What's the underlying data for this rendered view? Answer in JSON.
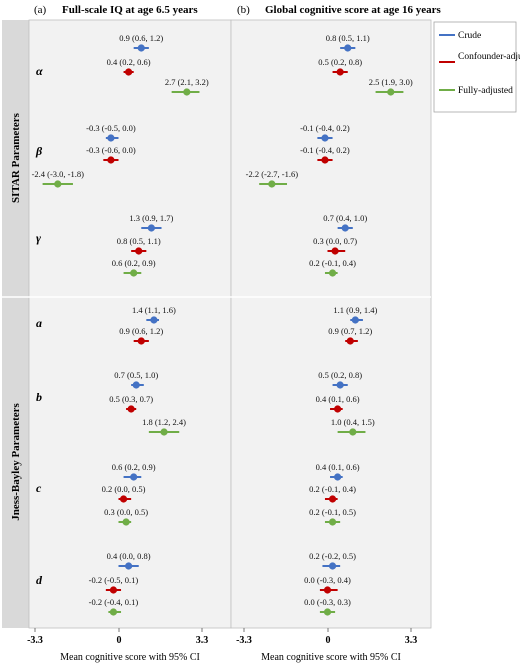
{
  "figure": {
    "panel_letters": [
      "(a)",
      "(b)"
    ],
    "panel_titles": [
      "Full-scale IQ at age 6.5 years",
      "Global cognitive score at age 16 years"
    ],
    "group_labels": [
      "SITAR Parameters",
      "Jness-Bayley Parameters"
    ],
    "row_labels": [
      "α",
      "β",
      "γ",
      "a",
      "b",
      "c",
      "d"
    ],
    "x_axis_label": "Mean cognitive score with 95% CI",
    "x_ticks": [
      "-3.3",
      "0",
      "3.3"
    ],
    "legend": [
      {
        "name": "Crude",
        "color": "#4472c4"
      },
      {
        "name": "Confounder-adjusted",
        "color": "#c00000"
      },
      {
        "name": "Fully-adjusted",
        "color": "#70ad47"
      }
    ],
    "colors": {
      "crude": "#4472c4",
      "confounder": "#c00000",
      "fully": "#70ad47",
      "panel_bg": "#f2f2f2",
      "group_bg": "#d9d9d9"
    }
  },
  "chart_data": [
    {
      "type": "forest",
      "title": "Full-scale IQ at age 6.5 years",
      "xlabel": "Mean cognitive score with 95% CI",
      "xlim": [
        -3.3,
        3.3
      ],
      "categories": [
        "α",
        "β",
        "γ",
        "a",
        "b",
        "c",
        "d"
      ],
      "series": [
        {
          "name": "Crude",
          "points": [
            {
              "est": 0.9,
              "lo": 0.6,
              "hi": 1.2,
              "label": "0.9 (0.6, 1.2)"
            },
            {
              "est": -0.3,
              "lo": -0.5,
              "hi": 0.0,
              "label": "-0.3 (-0.5, 0.0)"
            },
            {
              "est": 1.3,
              "lo": 0.9,
              "hi": 1.7,
              "label": "1.3 (0.9, 1.7)"
            },
            {
              "est": 1.4,
              "lo": 1.1,
              "hi": 1.6,
              "label": "1.4 (1.1, 1.6)"
            },
            {
              "est": 0.7,
              "lo": 0.5,
              "hi": 1.0,
              "label": "0.7 (0.5, 1.0)"
            },
            {
              "est": 0.6,
              "lo": 0.2,
              "hi": 0.9,
              "label": "0.6 (0.2, 0.9)"
            },
            {
              "est": 0.4,
              "lo": 0.0,
              "hi": 0.8,
              "label": "0.4 (0.0, 0.8)"
            }
          ]
        },
        {
          "name": "Confounder-adjusted",
          "points": [
            {
              "est": 0.4,
              "lo": 0.2,
              "hi": 0.6,
              "label": "0.4 (0.2, 0.6)"
            },
            {
              "est": -0.3,
              "lo": -0.6,
              "hi": 0.0,
              "label": "-0.3 (-0.6, 0.0)"
            },
            {
              "est": 0.8,
              "lo": 0.5,
              "hi": 1.1,
              "label": "0.8 (0.5, 1.1)"
            },
            {
              "est": 0.9,
              "lo": 0.6,
              "hi": 1.2,
              "label": "0.9 (0.6, 1.2)"
            },
            {
              "est": 0.5,
              "lo": 0.3,
              "hi": 0.7,
              "label": "0.5 (0.3, 0.7)"
            },
            {
              "est": 0.2,
              "lo": 0.0,
              "hi": 0.5,
              "label": "0.2 (0.0, 0.5)"
            },
            {
              "est": -0.2,
              "lo": -0.5,
              "hi": 0.1,
              "label": "-0.2 (-0.5, 0.1)"
            }
          ]
        },
        {
          "name": "Fully-adjusted",
          "points": [
            {
              "est": 2.7,
              "lo": 2.1,
              "hi": 3.2,
              "label": "2.7 (2.1, 3.2)"
            },
            {
              "est": -2.4,
              "lo": -3.0,
              "hi": -1.8,
              "label": "-2.4 (-3.0, -1.8)"
            },
            {
              "est": 0.6,
              "lo": 0.2,
              "hi": 0.9,
              "label": "0.6 (0.2, 0.9)"
            },
            null,
            {
              "est": 1.8,
              "lo": 1.2,
              "hi": 2.4,
              "label": "1.8 (1.2, 2.4)"
            },
            {
              "est": 0.3,
              "lo": 0.0,
              "hi": 0.5,
              "label": "0.3 (0.0, 0.5)"
            },
            {
              "est": -0.2,
              "lo": -0.4,
              "hi": 0.1,
              "label": "-0.2 (-0.4, 0.1)"
            }
          ]
        }
      ]
    },
    {
      "type": "forest",
      "title": "Global cognitive score at age 16 years",
      "xlabel": "Mean cognitive score with 95% CI",
      "xlim": [
        -3.3,
        3.3
      ],
      "categories": [
        "α",
        "β",
        "γ",
        "a",
        "b",
        "c",
        "d"
      ],
      "series": [
        {
          "name": "Crude",
          "points": [
            {
              "est": 0.8,
              "lo": 0.5,
              "hi": 1.1,
              "label": "0.8 (0.5, 1.1)"
            },
            {
              "est": -0.1,
              "lo": -0.4,
              "hi": 0.2,
              "label": "-0.1 (-0.4, 0.2)"
            },
            {
              "est": 0.7,
              "lo": 0.4,
              "hi": 1.0,
              "label": "0.7 (0.4, 1.0)"
            },
            {
              "est": 1.1,
              "lo": 0.9,
              "hi": 1.4,
              "label": "1.1 (0.9, 1.4)"
            },
            {
              "est": 0.5,
              "lo": 0.2,
              "hi": 0.8,
              "label": "0.5 (0.2, 0.8)"
            },
            {
              "est": 0.4,
              "lo": 0.1,
              "hi": 0.6,
              "label": "0.4 (0.1, 0.6)"
            },
            {
              "est": 0.2,
              "lo": -0.2,
              "hi": 0.5,
              "label": "0.2 (-0.2, 0.5)"
            }
          ]
        },
        {
          "name": "Confounder-adjusted",
          "points": [
            {
              "est": 0.5,
              "lo": 0.2,
              "hi": 0.8,
              "label": "0.5 (0.2, 0.8)"
            },
            {
              "est": -0.1,
              "lo": -0.4,
              "hi": 0.2,
              "label": "-0.1 (-0.4, 0.2)"
            },
            {
              "est": 0.3,
              "lo": 0.0,
              "hi": 0.7,
              "label": "0.3 (0.0, 0.7)"
            },
            {
              "est": 0.9,
              "lo": 0.7,
              "hi": 1.2,
              "label": "0.9 (0.7, 1.2)"
            },
            {
              "est": 0.4,
              "lo": 0.1,
              "hi": 0.6,
              "label": "0.4 (0.1, 0.6)"
            },
            {
              "est": 0.2,
              "lo": -0.1,
              "hi": 0.4,
              "label": "0.2 (-0.1, 0.4)"
            },
            {
              "est": 0.0,
              "lo": -0.3,
              "hi": 0.4,
              "label": "0.0 (-0.3, 0.4)"
            }
          ]
        },
        {
          "name": "Fully-adjusted",
          "points": [
            {
              "est": 2.5,
              "lo": 1.9,
              "hi": 3.0,
              "label": "2.5 (1.9, 3.0)"
            },
            {
              "est": -2.2,
              "lo": -2.7,
              "hi": -1.6,
              "label": "-2.2 (-2.7, -1.6)"
            },
            {
              "est": 0.2,
              "lo": -0.1,
              "hi": 0.4,
              "label": "0.2 (-0.1, 0.4)"
            },
            null,
            {
              "est": 1.0,
              "lo": 0.4,
              "hi": 1.5,
              "label": "1.0 (0.4, 1.5)"
            },
            {
              "est": 0.2,
              "lo": -0.1,
              "hi": 0.5,
              "label": "0.2 (-0.1, 0.5)"
            },
            {
              "est": 0.0,
              "lo": -0.3,
              "hi": 0.3,
              "label": "0.0 (-0.3, 0.3)"
            }
          ]
        }
      ]
    }
  ]
}
